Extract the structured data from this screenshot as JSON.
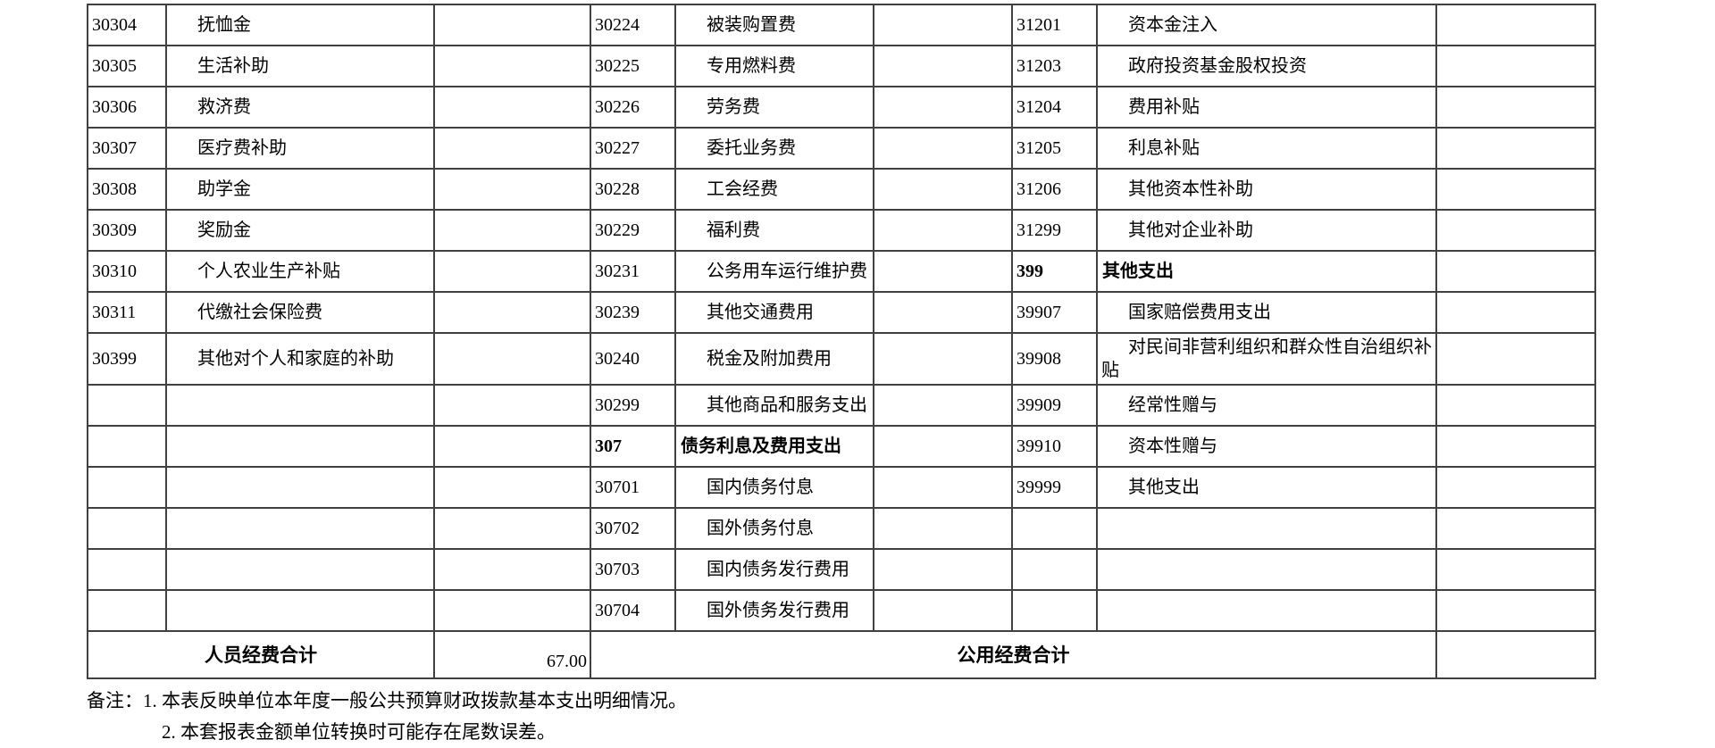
{
  "colors": {
    "background": "#ffffff",
    "border": "#404040",
    "text": "#000000"
  },
  "table": {
    "rows": [
      {
        "cells": [
          "30304",
          "抚恤金",
          "",
          "30224",
          "被装购置费",
          "",
          "31201",
          "资本金注入",
          ""
        ],
        "bold": []
      },
      {
        "cells": [
          "30305",
          "生活补助",
          "",
          "30225",
          "专用燃料费",
          "",
          "31203",
          "政府投资基金股权投资",
          ""
        ],
        "bold": []
      },
      {
        "cells": [
          "30306",
          "救济费",
          "",
          "30226",
          "劳务费",
          "",
          "31204",
          "费用补贴",
          ""
        ],
        "bold": []
      },
      {
        "cells": [
          "30307",
          "医疗费补助",
          "",
          "30227",
          "委托业务费",
          "",
          "31205",
          "利息补贴",
          ""
        ],
        "bold": []
      },
      {
        "cells": [
          "30308",
          "助学金",
          "",
          "30228",
          "工会经费",
          "",
          "31206",
          "其他资本性补助",
          ""
        ],
        "bold": []
      },
      {
        "cells": [
          "30309",
          "奖励金",
          "",
          "30229",
          "福利费",
          "",
          "31299",
          "其他对企业补助",
          ""
        ],
        "bold": []
      },
      {
        "cells": [
          "30310",
          "个人农业生产补贴",
          "",
          "30231",
          "公务用车运行维护费",
          "",
          "399",
          "其他支出",
          ""
        ],
        "bold": [
          6,
          7
        ]
      },
      {
        "cells": [
          "30311",
          "代缴社会保险费",
          "",
          "30239",
          "其他交通费用",
          "",
          "39907",
          "国家赔偿费用支出",
          ""
        ],
        "bold": []
      },
      {
        "cells": [
          "30399",
          "其他对个人和家庭的补助",
          "",
          "30240",
          "税金及附加费用",
          "",
          "39908",
          "对民间非营利组织和群众性自治组织补贴",
          ""
        ],
        "bold": []
      },
      {
        "cells": [
          "",
          "",
          "",
          "30299",
          "其他商品和服务支出",
          "",
          "39909",
          "经常性赠与",
          ""
        ],
        "bold": []
      },
      {
        "cells": [
          "",
          "",
          "",
          "307",
          "债务利息及费用支出",
          "",
          "39910",
          "资本性赠与",
          ""
        ],
        "bold": [
          3,
          4
        ]
      },
      {
        "cells": [
          "",
          "",
          "",
          "30701",
          "国内债务付息",
          "",
          "39999",
          "其他支出",
          ""
        ],
        "bold": []
      },
      {
        "cells": [
          "",
          "",
          "",
          "30702",
          "国外债务付息",
          "",
          "",
          "",
          ""
        ],
        "bold": []
      },
      {
        "cells": [
          "",
          "",
          "",
          "30703",
          "国内债务发行费用",
          "",
          "",
          "",
          ""
        ],
        "bold": []
      },
      {
        "cells": [
          "",
          "",
          "",
          "30704",
          "国外债务发行费用",
          "",
          "",
          "",
          ""
        ],
        "bold": []
      }
    ],
    "summary": {
      "personnel_label": "人员经费合计",
      "personnel_total": "67.00",
      "public_label": "公用经费合计",
      "public_total": ""
    }
  },
  "notes": {
    "prefix": "备注：",
    "line1": "1. 本表反映单位本年度一般公共预算财政拨款基本支出明细情况。",
    "line2": "2. 本套报表金额单位转换时可能存在尾数误差。"
  }
}
